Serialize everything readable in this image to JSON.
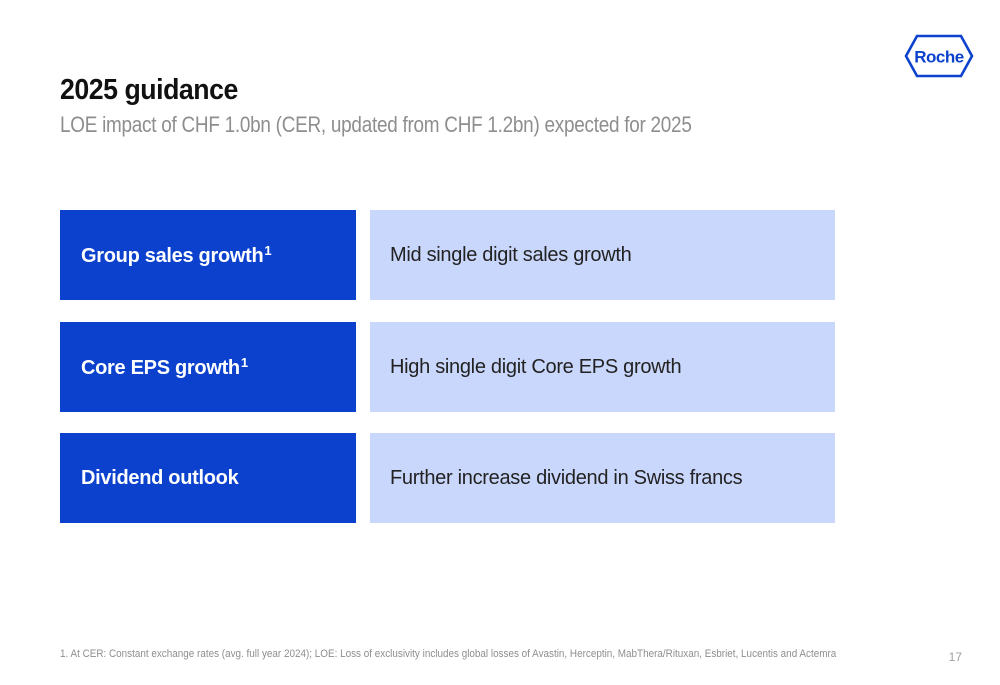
{
  "slide": {
    "title": "2025 guidance",
    "subtitle": "LOE impact of CHF 1.0bn (CER, updated from CHF 1.2bn) expected for 2025",
    "logo_text": "Roche",
    "brand_color": "#0b41cd",
    "light_color": "#cad7fc",
    "rows": [
      {
        "label": "Group sales growth",
        "superscript": "1",
        "value": "Mid single digit sales growth"
      },
      {
        "label": "Core EPS growth",
        "superscript": "1",
        "value": "High single digit Core EPS growth"
      },
      {
        "label": "Dividend outlook",
        "superscript": "",
        "value": "Further increase dividend in Swiss francs"
      }
    ],
    "footnote": "1. At CER: Constant exchange rates (avg. full year 2024); LOE: Loss of exclusivity includes global losses of Avastin, Herceptin, MabThera/Rituxan, Esbriet, Lucentis and Actemra",
    "page_number": "17"
  }
}
